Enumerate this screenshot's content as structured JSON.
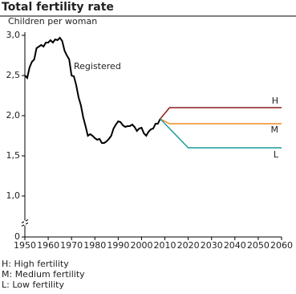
{
  "chart_data": {
    "type": "line",
    "title": "Total fertility rate",
    "y_label": "Children per woman",
    "xlim": [
      1950,
      2060
    ],
    "xticks": [
      1950,
      1960,
      1970,
      1980,
      1990,
      2000,
      2010,
      2020,
      2030,
      2040,
      2050,
      2060
    ],
    "ylim": [
      0,
      3
    ],
    "y_break": [
      0,
      1
    ],
    "yticks": [
      0,
      {
        "value": 1,
        "label": "1,0"
      },
      {
        "value": 1.5,
        "label": "1,5"
      },
      {
        "value": 2,
        "label": "2,0"
      },
      {
        "value": 2.5,
        "label": "2,5"
      },
      {
        "value": 3,
        "label": "3,0"
      }
    ],
    "series": [
      {
        "name": "Registered",
        "color": "#000000",
        "x": [
          1950,
          1951,
          1952,
          1953,
          1954,
          1955,
          1956,
          1957,
          1958,
          1959,
          1960,
          1961,
          1962,
          1963,
          1964,
          1965,
          1966,
          1967,
          1968,
          1969,
          1970,
          1971,
          1972,
          1973,
          1974,
          1975,
          1976,
          1977,
          1978,
          1979,
          1980,
          1981,
          1982,
          1983,
          1984,
          1985,
          1986,
          1987,
          1988,
          1989,
          1990,
          1991,
          1992,
          1993,
          1994,
          1995,
          1996,
          1997,
          1998,
          1999,
          2000,
          2001,
          2002,
          2003,
          2004,
          2005,
          2006,
          2007,
          2008
        ],
        "values": [
          2.5,
          2.47,
          2.6,
          2.67,
          2.7,
          2.84,
          2.86,
          2.88,
          2.86,
          2.91,
          2.91,
          2.94,
          2.91,
          2.95,
          2.94,
          2.97,
          2.93,
          2.81,
          2.75,
          2.7,
          2.5,
          2.49,
          2.38,
          2.23,
          2.13,
          1.98,
          1.87,
          1.75,
          1.77,
          1.75,
          1.72,
          1.7,
          1.71,
          1.66,
          1.66,
          1.68,
          1.71,
          1.75,
          1.84,
          1.89,
          1.93,
          1.92,
          1.88,
          1.86,
          1.87,
          1.87,
          1.89,
          1.86,
          1.81,
          1.84,
          1.85,
          1.78,
          1.75,
          1.8,
          1.83,
          1.84,
          1.9,
          1.9,
          1.96
        ]
      },
      {
        "name": "H",
        "color": "#8b1a1a",
        "x": [
          2008,
          2012,
          2060
        ],
        "values": [
          1.96,
          2.1,
          2.1
        ]
      },
      {
        "name": "M",
        "color": "#f08a24",
        "x": [
          2008,
          2012,
          2060
        ],
        "values": [
          1.96,
          1.9,
          1.9
        ]
      },
      {
        "name": "L",
        "color": "#1a9a9a",
        "x": [
          2008,
          2020,
          2060
        ],
        "values": [
          1.96,
          1.6,
          1.6
        ]
      }
    ],
    "notes": [
      "H: High fertility",
      "M: Medium fertility",
      "L: Low fertility"
    ]
  }
}
